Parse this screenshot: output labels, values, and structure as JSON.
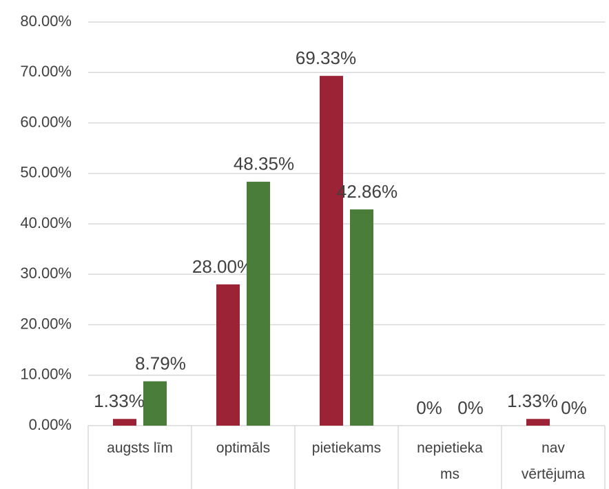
{
  "chart_data": {
    "type": "bar",
    "categories": [
      "augsts līm",
      "optimāls",
      "pietiekams",
      "nepietiekams",
      "nav vērtējuma"
    ],
    "series": [
      {
        "color": "#9b2335",
        "values": [
          1.33,
          28,
          69.33,
          0,
          1.33
        ],
        "value_labels": [
          "1.33%",
          "28.00%",
          "69.33%",
          "0%",
          "1.33%"
        ]
      },
      {
        "color": "#4a7c3a",
        "values": [
          8.79,
          48.35,
          42.86,
          0,
          0
        ],
        "value_labels": [
          "8.79%",
          "48.35%",
          "42.86%",
          "0%",
          "0%"
        ]
      }
    ],
    "ylim": [
      0,
      80
    ],
    "yticks": [
      {
        "value": 0,
        "label": "0.00%"
      },
      {
        "value": 10,
        "label": "10.00%"
      },
      {
        "value": 20,
        "label": "20.00%"
      },
      {
        "value": 30,
        "label": "30.00%"
      },
      {
        "value": 40,
        "label": "40.00%"
      },
      {
        "value": 50,
        "label": "50.00%"
      },
      {
        "value": 60,
        "label": "60.00%"
      },
      {
        "value": 70,
        "label": "70.00%"
      },
      {
        "value": 80,
        "label": "80.00%"
      }
    ],
    "grid": true
  }
}
